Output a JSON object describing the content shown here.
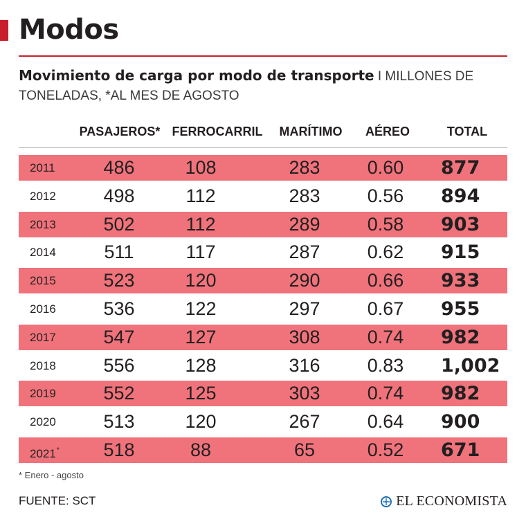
{
  "section_title": "Modos",
  "headline": {
    "main": "Movimiento de carga por modo de transporte",
    "sub": "I MILLONES DE TONELADAS, *AL MES DE AGOSTO"
  },
  "footnote": "* Enero - agosto",
  "source": "FUENTE: SCT",
  "brand": "EL ECONOMISTA",
  "colors": {
    "accent": "#c8202a",
    "row_shade": "#f0737b",
    "text": "#231f20"
  },
  "chart_data": {
    "type": "table",
    "columns": [
      "PASAJEROS*",
      "FERROCARRIL",
      "MARÍTIMO",
      "AÉREO",
      "TOTAL"
    ],
    "rows": [
      {
        "year": "2011",
        "marker": "",
        "values": [
          "486",
          "108",
          "283",
          "0.60"
        ],
        "total": "877"
      },
      {
        "year": "2012",
        "marker": "",
        "values": [
          "498",
          "112",
          "283",
          "0.56"
        ],
        "total": "894"
      },
      {
        "year": "2013",
        "marker": "",
        "values": [
          "502",
          "112",
          "289",
          "0.58"
        ],
        "total": "903"
      },
      {
        "year": "2014",
        "marker": "",
        "values": [
          "511",
          "117",
          "287",
          "0.62"
        ],
        "total": "915"
      },
      {
        "year": "2015",
        "marker": "",
        "values": [
          "523",
          "120",
          "290",
          "0.66"
        ],
        "total": "933"
      },
      {
        "year": "2016",
        "marker": "",
        "values": [
          "536",
          "122",
          "297",
          "0.67"
        ],
        "total": "955"
      },
      {
        "year": "2017",
        "marker": "",
        "values": [
          "547",
          "127",
          "308",
          "0.74"
        ],
        "total": "982"
      },
      {
        "year": "2018",
        "marker": "",
        "values": [
          "556",
          "128",
          "316",
          "0.83"
        ],
        "total": "1,002"
      },
      {
        "year": "2019",
        "marker": "",
        "values": [
          "552",
          "125",
          "303",
          "0.74"
        ],
        "total": "982"
      },
      {
        "year": "2020",
        "marker": "",
        "values": [
          "513",
          "120",
          "267",
          "0.64"
        ],
        "total": "900"
      },
      {
        "year": "2021",
        "marker": "*",
        "values": [
          "518",
          "88",
          "65",
          "0.52"
        ],
        "total": "671"
      }
    ]
  }
}
